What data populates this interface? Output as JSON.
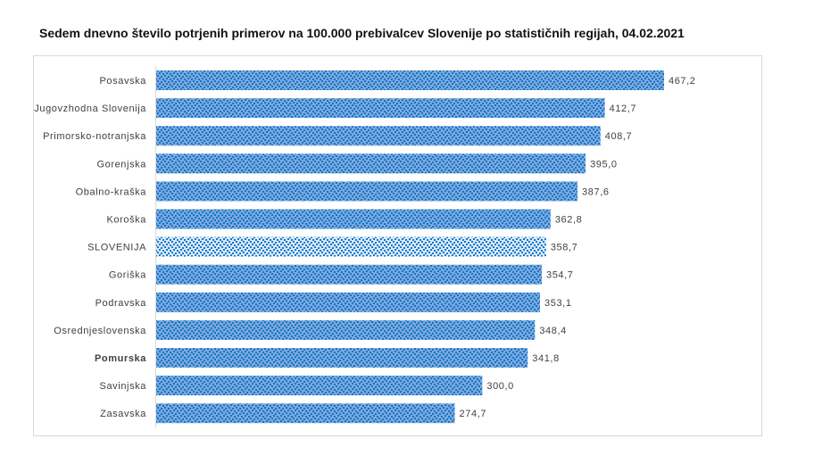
{
  "chart_data": {
    "type": "bar",
    "orientation": "horizontal",
    "title": "Sedem dnevno število potrjenih primerov na 100.000  prebivalcev Slovenije po statističnih regijah, 04.02.2021",
    "categories": [
      "Posavska",
      "Jugovzhodna Slovenija",
      "Primorsko-notranjska",
      "Gorenjska",
      "Obalno-kraška",
      "Koroška",
      "SLOVENIJA",
      "Goriška",
      "Podravska",
      "Osrednjeslovenska",
      "Pomurska",
      "Savinjska",
      "Zasavska"
    ],
    "values": [
      467.2,
      412.7,
      408.7,
      395.0,
      387.6,
      362.8,
      358.7,
      354.7,
      353.1,
      348.4,
      341.8,
      300.0,
      274.7
    ],
    "data_labels": [
      "467,2",
      "412,7",
      "408,7",
      "395,0",
      "387,6",
      "362,8",
      "358,7",
      "354,7",
      "353,1",
      "348,4",
      "341,8",
      "300,0",
      "274,7"
    ],
    "highlight_category": "SLOVENIJA",
    "xlim": [
      0,
      500
    ],
    "grid": false,
    "legend": "none",
    "colors": {
      "bar_base": "#7fa7dc",
      "bar_dots": "#0b78c9",
      "highlight_base": "#dbe8f6",
      "highlight_dots": "#0b78c9"
    }
  }
}
